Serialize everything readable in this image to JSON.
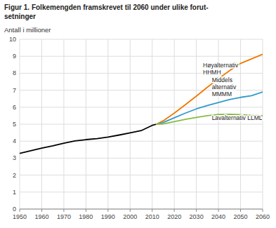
{
  "chart_data": {
    "type": "line",
    "title": "Figur 1. Folkemengden framskrevet til 2060 under ulike forut-\nsetninger",
    "ylabel": "Antall i millioner",
    "xlim": [
      1950,
      2060
    ],
    "ylim": [
      0,
      10
    ],
    "xticks": [
      1950,
      1960,
      1970,
      1980,
      1990,
      2000,
      2010,
      2020,
      2030,
      2040,
      2050,
      2060
    ],
    "yticks": [
      0,
      1,
      2,
      3,
      4,
      5,
      6,
      7,
      8,
      9,
      10
    ],
    "grid": true,
    "series": [
      {
        "x": [
          1950,
          1955,
          1960,
          1965,
          1970,
          1975,
          1980,
          1985,
          1990,
          1995,
          2000,
          2005,
          2010,
          2012
        ],
        "values": [
          3.28,
          3.43,
          3.59,
          3.72,
          3.88,
          4.01,
          4.09,
          4.15,
          4.24,
          4.36,
          4.49,
          4.62,
          4.93,
          5.0
        ],
        "color": "#000000"
      },
      {
        "x": [
          2012,
          2015,
          2020,
          2025,
          2030,
          2035,
          2040,
          2045,
          2050,
          2055,
          2060
        ],
        "values": [
          5.0,
          5.2,
          5.65,
          6.15,
          6.65,
          7.18,
          7.68,
          8.15,
          8.58,
          8.85,
          9.12
        ],
        "color": "#f07800"
      },
      {
        "x": [
          2012,
          2015,
          2020,
          2025,
          2030,
          2035,
          2040,
          2045,
          2050,
          2055,
          2060
        ],
        "values": [
          5.0,
          5.1,
          5.38,
          5.65,
          5.9,
          6.1,
          6.28,
          6.45,
          6.58,
          6.68,
          6.9
        ],
        "color": "#3399cc"
      },
      {
        "x": [
          2012,
          2015,
          2020,
          2025,
          2030,
          2035,
          2040,
          2045,
          2050,
          2055,
          2060
        ],
        "values": [
          5.0,
          5.02,
          5.15,
          5.28,
          5.4,
          5.5,
          5.57,
          5.58,
          5.56,
          5.52,
          5.5
        ],
        "color": "#88bb44"
      }
    ],
    "annotations": [
      {
        "text": "Høyalternativ\nHHMH",
        "x": 2033,
        "y": 7.85
      },
      {
        "text": "Middels\nalternativ\nMMMM",
        "x": 2037,
        "y": 6.55
      },
      {
        "text": "Lavalternativ LLML",
        "x": 2037,
        "y": 5.18
      }
    ]
  }
}
